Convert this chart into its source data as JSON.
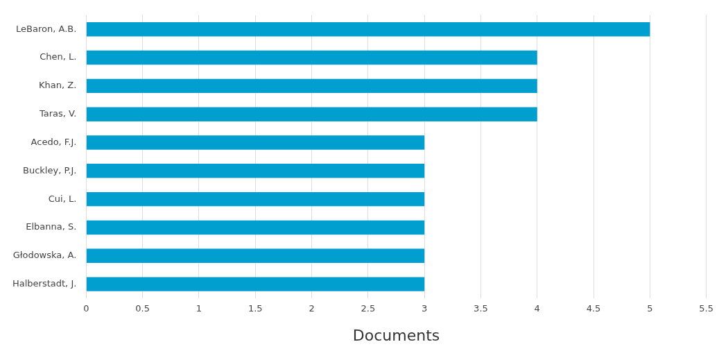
{
  "chart_data": {
    "type": "bar",
    "orientation": "horizontal",
    "xlabel": "Documents",
    "categories": [
      "LeBaron, A.B.",
      "Chen, L.",
      "Khan, Z.",
      "Taras, V.",
      "Acedo, F.J.",
      "Buckley, P.J.",
      "Cui, L.",
      "Elbanna, S.",
      "Głodowska, A.",
      "Halberstadt, J."
    ],
    "values": [
      5,
      4,
      4,
      4,
      3,
      3,
      3,
      3,
      3,
      3
    ],
    "color": "#009fd0",
    "xlim": [
      0,
      5.5
    ],
    "xticks": [
      0,
      0.5,
      1,
      1.5,
      2,
      2.5,
      3,
      3.5,
      4,
      4.5,
      5,
      5.5
    ],
    "grid": "x",
    "legend": false
  }
}
